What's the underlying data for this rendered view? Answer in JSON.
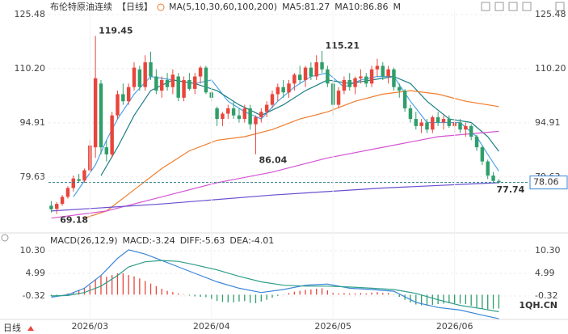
{
  "chart_data": [
    {
      "type": "candlestick",
      "title": "布伦特原油连续",
      "period": "【日线】",
      "indicator_label": "MA(5,10,30,60,100,200)",
      "up_color": "#e8453c",
      "down_color": "#2f9e6a",
      "grid": true,
      "xlim": [
        -0.5,
        86.5
      ],
      "ylim": [
        64.5,
        126.4
      ],
      "yticks": [
        79.63,
        94.91,
        {
          "value": 110.2,
          "label": "110.20"
        },
        125.48
      ],
      "current_price": 78.06,
      "ohlc": [
        [
          71.5,
          72.8,
          69.6,
          70.5
        ],
        [
          70.6,
          72.5,
          69.18,
          72.0
        ],
        [
          72,
          74.5,
          71.5,
          74
        ],
        [
          74,
          77,
          73.5,
          76.5
        ],
        [
          76.5,
          80,
          75.5,
          79.2
        ],
        [
          79,
          80.5,
          78,
          78.5
        ],
        [
          78.6,
          82,
          78,
          81.5
        ],
        [
          81.5,
          90,
          81,
          88.5
        ],
        [
          88,
          119.45,
          85,
          107.5
        ],
        [
          106,
          107,
          86,
          88
        ],
        [
          88,
          90,
          84,
          86
        ],
        [
          86,
          98,
          85,
          97
        ],
        [
          97,
          104,
          96,
          103
        ],
        [
          103,
          106,
          100,
          101
        ],
        [
          101,
          106,
          100,
          105
        ],
        [
          105,
          112,
          104,
          110.5
        ],
        [
          110,
          111,
          104,
          105
        ],
        [
          105,
          114,
          104,
          112
        ],
        [
          112,
          115,
          107,
          108
        ],
        [
          108,
          110,
          103,
          104
        ],
        [
          104,
          108,
          102,
          107
        ],
        [
          107,
          109,
          104,
          105
        ],
        [
          105,
          110,
          103,
          108.5
        ],
        [
          108,
          109,
          101,
          102
        ],
        [
          102,
          108,
          101,
          107
        ],
        [
          107,
          109,
          104,
          104.5
        ],
        [
          104.5,
          109,
          103,
          108
        ],
        [
          108,
          111,
          106,
          110.5
        ],
        [
          110.5,
          111,
          103,
          103.5
        ],
        [
          103.5,
          105,
          101,
          102
        ],
        [
          99,
          99.5,
          94,
          96
        ],
        [
          96,
          98,
          94,
          97.5
        ],
        [
          97.5,
          100,
          96,
          99
        ],
        [
          99,
          101,
          96,
          97
        ],
        [
          97,
          99,
          95,
          96
        ],
        [
          96,
          100,
          95,
          99
        ],
        [
          99,
          100,
          93,
          94.5
        ],
        [
          94.5,
          97,
          86.04,
          96.5
        ],
        [
          96.5,
          99,
          95,
          98
        ],
        [
          98,
          101,
          96.5,
          100
        ],
        [
          100,
          104,
          99,
          103
        ],
        [
          103,
          106,
          101,
          105
        ],
        [
          105,
          107,
          102,
          103.5
        ],
        [
          103.5,
          107,
          102,
          106
        ],
        [
          106,
          109,
          104,
          108.5
        ],
        [
          108.5,
          111,
          106,
          107
        ],
        [
          107,
          111,
          105,
          110.5
        ],
        [
          110.5,
          112,
          107,
          108
        ],
        [
          108,
          114,
          107,
          112
        ],
        [
          112,
          115.21,
          109,
          110
        ],
        [
          110,
          111,
          105,
          106
        ],
        [
          106,
          106.5,
          97,
          100
        ],
        [
          100,
          105,
          99,
          104
        ],
        [
          104,
          108,
          103,
          107
        ],
        [
          107,
          109,
          104,
          105
        ],
        [
          105,
          108,
          103,
          107.5
        ],
        [
          107.5,
          110,
          106,
          108
        ],
        [
          108,
          109,
          105,
          106
        ],
        [
          106,
          111,
          105,
          110
        ],
        [
          110,
          113,
          108,
          111
        ],
        [
          111,
          112,
          107,
          108
        ],
        [
          108,
          111,
          106,
          110
        ],
        [
          110,
          110.5,
          104,
          105
        ],
        [
          105,
          106,
          102,
          104
        ],
        [
          104,
          104.5,
          98,
          99
        ],
        [
          99,
          100,
          95,
          96
        ],
        [
          96,
          98,
          93,
          94
        ],
        [
          94,
          96,
          92,
          95
        ],
        [
          95,
          96,
          92,
          93
        ],
        [
          93,
          97,
          92,
          96.5
        ],
        [
          96.5,
          98,
          94,
          95
        ],
        [
          95,
          97,
          93,
          96
        ],
        [
          96,
          97,
          93.5,
          94
        ],
        [
          94,
          96,
          92,
          95
        ],
        [
          95,
          96,
          92,
          93
        ],
        [
          93,
          95,
          91,
          94
        ],
        [
          94,
          94.5,
          90,
          91
        ],
        [
          91,
          91.5,
          87,
          88
        ],
        [
          88,
          88.5,
          83,
          84
        ],
        [
          84,
          84.5,
          79,
          80
        ],
        [
          80,
          81,
          77.74,
          78.5
        ],
        [
          78.5,
          79,
          77.8,
          78.06
        ]
      ],
      "series": [
        {
          "name": "MA5:81.27",
          "color": "#4aa3e8",
          "x": [
            4,
            8,
            10,
            12,
            15,
            18,
            22,
            26,
            29,
            32,
            35,
            38,
            41,
            44,
            47,
            50,
            53,
            56,
            59,
            62,
            65,
            68,
            71,
            74,
            77,
            79,
            81
          ],
          "values": [
            74,
            83,
            90,
            96,
            103,
            108,
            107,
            106,
            107,
            101,
            98,
            96,
            101,
            105,
            108,
            109,
            105,
            107,
            108,
            108,
            101,
            95,
            95,
            95,
            91,
            86,
            81.27
          ]
        },
        {
          "name": "MA10:86.86",
          "color": "#1f7f86",
          "x": [
            9,
            12,
            15,
            18,
            22,
            26,
            30,
            34,
            38,
            42,
            46,
            50,
            54,
            58,
            62,
            65,
            68,
            72,
            76,
            79,
            81
          ],
          "values": [
            80,
            88,
            97,
            104,
            107,
            106,
            104,
            100,
            97,
            100,
            104,
            107,
            106,
            107,
            108,
            106,
            101,
            96,
            95,
            91,
            86.86
          ]
        },
        {
          "name": "M",
          "color": "#f07d2c",
          "x": [
            6,
            10,
            15,
            20,
            25,
            30,
            35,
            40,
            45,
            50,
            55,
            60,
            65,
            70,
            75,
            81
          ],
          "values": [
            68,
            70,
            76,
            82,
            87,
            90,
            91,
            93,
            96,
            98,
            101,
            103,
            104,
            103,
            101,
            99.5
          ]
        },
        {
          "color": "#d455d4",
          "x": [
            0,
            10,
            20,
            30,
            40,
            50,
            60,
            70,
            81
          ],
          "values": [
            68,
            70,
            74,
            78,
            81,
            85,
            88,
            91,
            92.5
          ]
        },
        {
          "color": "#6a4fd0",
          "x": [
            0,
            20,
            40,
            60,
            81
          ],
          "values": [
            70,
            72,
            74.5,
            76.5,
            78
          ]
        }
      ]
    },
    {
      "type": "macd",
      "title": "MACD(26,12,9)",
      "grid": true,
      "xlim": [
        -0.5,
        86.5
      ],
      "ylim": [
        -5.8,
        13.7
      ],
      "yticks": [
        -0.32,
        4.99,
        {
          "value": 10.3,
          "label": "10.30"
        }
      ],
      "xticks": [
        {
          "value": 7,
          "label": "2026/03"
        },
        {
          "value": 29,
          "label": "2026/04"
        },
        {
          "value": 51,
          "label": "2026/05"
        },
        {
          "value": 73,
          "label": "2026/06"
        }
      ],
      "histogram": {
        "name": "MACD:-3.24",
        "color": "#3a7bd5",
        "up_color": "#e8453c",
        "down_color": "#2f9e6a",
        "values": [
          -0.3,
          -0.2,
          0,
          0.3,
          0.6,
          1.0,
          1.5,
          2.2,
          3.5,
          4.5,
          4.2,
          4.6,
          5.0,
          5.0,
          4.6,
          4.3,
          3.8,
          3.2,
          2.6,
          2.0,
          1.4,
          0.9,
          0.6,
          0.3,
          0.1,
          -0.2,
          -0.4,
          -0.5,
          -0.6,
          -1.0,
          -1.5,
          -1.7,
          -1.8,
          -1.8,
          -1.6,
          -1.5,
          -1.9,
          -2.0,
          -1.6,
          -1.2,
          -0.7,
          -0.3,
          0.1,
          0.4,
          0.7,
          0.9,
          1.1,
          1.2,
          1.4,
          1.5,
          1.0,
          0.4,
          0.3,
          0.4,
          0.3,
          0.3,
          0.4,
          0.3,
          0.5,
          0.6,
          0.4,
          0.4,
          -0.1,
          -0.5,
          -1.2,
          -1.8,
          -2.3,
          -2.5,
          -2.6,
          -2.4,
          -2.2,
          -2.1,
          -2.0,
          -2.0,
          -2.1,
          -2.2,
          -2.6,
          -3.0,
          -3.3,
          -3.4,
          -3.3,
          -3.24
        ]
      },
      "series": [
        {
          "name": "DIFF:-5.63",
          "color": "#3a86d8",
          "x": [
            0,
            3,
            6,
            9,
            12,
            14,
            17,
            20,
            23,
            26,
            30,
            34,
            38,
            42,
            46,
            50,
            54,
            58,
            62,
            66,
            70,
            74,
            78,
            81
          ],
          "values": [
            -0.6,
            0,
            1.5,
            4.5,
            8.5,
            10.5,
            9.5,
            8,
            6.5,
            5,
            3,
            1.5,
            0.5,
            1.2,
            2.2,
            2.5,
            1.5,
            1.2,
            0.8,
            -1.8,
            -3,
            -3.6,
            -4.8,
            -5.63
          ]
        },
        {
          "name": "DEA:-4.01",
          "color": "#2f9e8a",
          "x": [
            0,
            3,
            6,
            9,
            12,
            14,
            17,
            20,
            23,
            26,
            30,
            34,
            38,
            42,
            46,
            50,
            54,
            58,
            62,
            66,
            70,
            74,
            78,
            81
          ],
          "values": [
            -0.3,
            -0.2,
            0.5,
            2,
            4.5,
            6.5,
            7.7,
            8,
            7.8,
            7,
            5.8,
            4.3,
            3,
            2.2,
            2,
            2,
            1.8,
            1.5,
            1.2,
            0.3,
            -1.2,
            -2.5,
            -3.3,
            -4.01
          ]
        }
      ]
    }
  ],
  "footer": {
    "period": "日线",
    "watermark": "1QH.CN"
  }
}
